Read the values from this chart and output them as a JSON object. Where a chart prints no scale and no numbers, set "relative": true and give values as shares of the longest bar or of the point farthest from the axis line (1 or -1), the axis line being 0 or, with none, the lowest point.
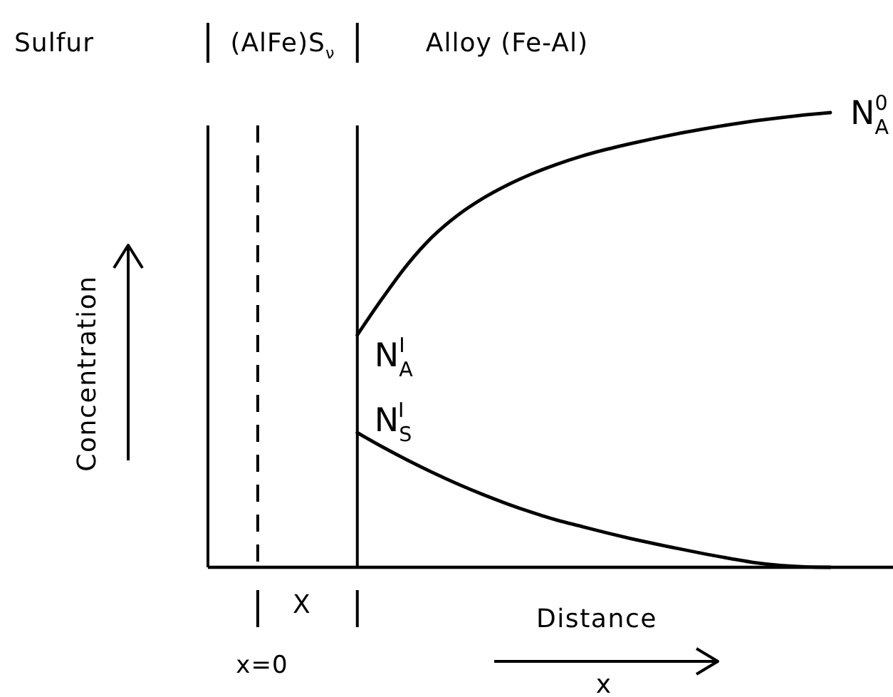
{
  "chart_data": {
    "type": "line",
    "relative": true,
    "xlabel": "Distance",
    "ylabel": "Concentration",
    "categories": [
      null,
      null,
      null,
      null,
      null,
      null,
      null,
      null,
      null,
      null,
      null,
      null,
      null,
      null,
      null,
      null,
      null,
      null,
      null,
      null,
      null,
      null,
      null,
      null,
      null,
      null
    ],
    "series": [
      {
        "color": "#000000",
        "values": [
          null,
          null,
          null,
          null,
          null,
          null,
          0.511,
          0.591,
          0.665,
          0.726,
          0.773,
          0.81,
          0.84,
          0.865,
          0.886,
          0.904,
          0.919,
          0.932,
          0.944,
          0.955,
          0.965,
          0.974,
          0.982,
          0.989,
          0.995,
          1.0
        ]
      },
      {
        "color": "#000000",
        "values": [
          null,
          null,
          null,
          null,
          null,
          null,
          0.296,
          0.265,
          0.236,
          0.209,
          0.184,
          0.161,
          0.14,
          0.121,
          0.104,
          0.09,
          0.076,
          0.063,
          0.051,
          0.04,
          0.029,
          0.019,
          0.01,
          0.004,
          0.001,
          0
        ]
      }
    ],
    "annotations": [
      "Sulfur",
      "(AlFe)S$_{ν}$",
      "Alloy (Fe-Al)",
      "X",
      "x=0",
      "x",
      "N$_{A}$$^{I}$",
      "N$_{S}$$^{I}$",
      "N$_{A}$$^{0}$"
    ]
  }
}
